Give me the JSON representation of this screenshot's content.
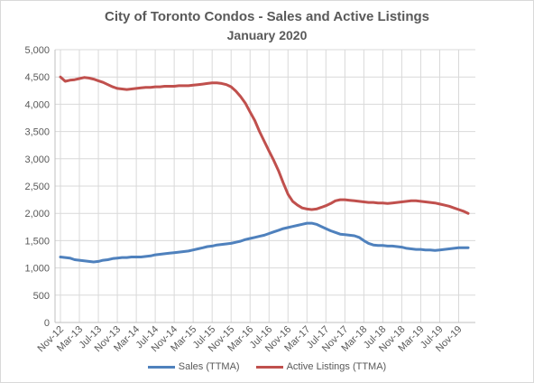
{
  "chart_data": {
    "type": "line",
    "title": "City of Toronto Condos - Sales and Active Listings",
    "subtitle": "January 2020",
    "xlabel": "",
    "ylabel": "",
    "ylim": [
      0,
      5000
    ],
    "yticks": [
      0,
      500,
      1000,
      1500,
      2000,
      2500,
      3000,
      3500,
      4000,
      4500,
      5000
    ],
    "ytick_labels": [
      "0",
      "500",
      "1,000",
      "1,500",
      "2,000",
      "2,500",
      "3,000",
      "3,500",
      "4,000",
      "4,500",
      "5,000"
    ],
    "xtick_labels": [
      "Nov-12",
      "Mar-13",
      "Jul-13",
      "Nov-13",
      "Mar-14",
      "Jul-14",
      "Nov-14",
      "Mar-15",
      "Jul-15",
      "Nov-15",
      "Mar-16",
      "Jul-16",
      "Nov-16",
      "Mar-17",
      "Jul-17",
      "Nov-17",
      "Mar-18",
      "Jul-18",
      "Nov-18",
      "Mar-19",
      "Jul-19",
      "Nov-19"
    ],
    "xtick_months": [
      0,
      4,
      8,
      12,
      16,
      20,
      24,
      28,
      32,
      36,
      40,
      44,
      48,
      52,
      56,
      60,
      64,
      68,
      72,
      76,
      80,
      84
    ],
    "x_months": [
      0,
      1,
      2,
      3,
      4,
      5,
      6,
      7,
      8,
      9,
      10,
      11,
      12,
      13,
      14,
      15,
      16,
      17,
      18,
      19,
      20,
      21,
      22,
      23,
      24,
      25,
      26,
      27,
      28,
      29,
      30,
      31,
      32,
      33,
      34,
      35,
      36,
      37,
      38,
      39,
      40,
      41,
      42,
      43,
      44,
      45,
      46,
      47,
      48,
      49,
      50,
      51,
      52,
      53,
      54,
      55,
      56,
      57,
      58,
      59,
      60,
      61,
      62,
      63,
      64,
      65,
      66,
      67,
      68,
      69,
      70,
      71,
      72,
      73,
      74,
      75,
      76,
      77,
      78,
      79,
      80,
      81,
      82,
      83,
      84,
      85,
      86
    ],
    "grid": true,
    "legend_position": "bottom",
    "colors": {
      "sales": "#4f81bd",
      "listings": "#c0504d"
    },
    "series": [
      {
        "name": "Sales (TTMA)",
        "values": [
          1200,
          1190,
          1180,
          1150,
          1140,
          1130,
          1120,
          1110,
          1120,
          1140,
          1150,
          1170,
          1180,
          1190,
          1190,
          1200,
          1200,
          1200,
          1210,
          1220,
          1240,
          1250,
          1260,
          1270,
          1280,
          1290,
          1300,
          1310,
          1330,
          1350,
          1370,
          1390,
          1400,
          1420,
          1430,
          1440,
          1450,
          1470,
          1490,
          1520,
          1540,
          1560,
          1580,
          1600,
          1630,
          1660,
          1690,
          1720,
          1740,
          1760,
          1780,
          1800,
          1820,
          1820,
          1800,
          1760,
          1720,
          1680,
          1650,
          1620,
          1610,
          1600,
          1590,
          1560,
          1500,
          1450,
          1420,
          1410,
          1410,
          1400,
          1400,
          1390,
          1380,
          1360,
          1350,
          1340,
          1340,
          1330,
          1330,
          1320,
          1330,
          1340,
          1350,
          1360,
          1370,
          1370,
          1370
        ]
      },
      {
        "name": "Active Listings (TTMA)",
        "values": [
          4500,
          4420,
          4440,
          4450,
          4470,
          4490,
          4480,
          4460,
          4430,
          4400,
          4360,
          4320,
          4290,
          4280,
          4270,
          4280,
          4290,
          4300,
          4310,
          4310,
          4320,
          4320,
          4330,
          4330,
          4330,
          4340,
          4340,
          4340,
          4350,
          4360,
          4370,
          4380,
          4390,
          4390,
          4380,
          4360,
          4320,
          4240,
          4140,
          4020,
          3860,
          3700,
          3500,
          3320,
          3140,
          2970,
          2780,
          2560,
          2350,
          2220,
          2150,
          2100,
          2080,
          2070,
          2080,
          2110,
          2140,
          2180,
          2230,
          2250,
          2250,
          2240,
          2230,
          2220,
          2210,
          2200,
          2200,
          2190,
          2190,
          2180,
          2190,
          2200,
          2210,
          2220,
          2230,
          2230,
          2220,
          2210,
          2200,
          2190,
          2170,
          2150,
          2130,
          2100,
          2070,
          2040,
          2000
        ]
      }
    ]
  }
}
